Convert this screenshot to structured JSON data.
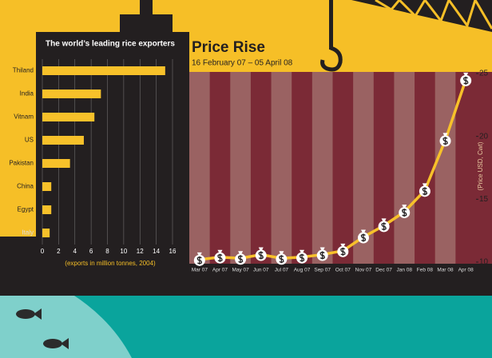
{
  "chart_data": [
    {
      "type": "bar",
      "orientation": "horizontal",
      "title": "The world’s leading rice exporters",
      "x_label": "(exports in million tonnes, 2004)",
      "categories": [
        "Thiland",
        "India",
        "Vitnam",
        "US",
        "Pakistan",
        "China",
        "Egypt",
        "Italy"
      ],
      "values": [
        15.1,
        7.2,
        6.4,
        5.1,
        3.4,
        1.1,
        1.1,
        0.9
      ],
      "color": "#f7c12a",
      "xlim": [
        0,
        16
      ],
      "xticks": [
        0,
        2,
        4,
        6,
        8,
        10,
        12,
        14,
        16
      ],
      "grid": true
    },
    {
      "type": "line",
      "title": "Price Rise",
      "subtitle": "16 February 07 – 05 April 08",
      "y_label": "(Price USD, Cwt)",
      "categories": [
        "Mar 07",
        "Apr 07",
        "May 07",
        "Jun 07",
        "Jul 07",
        "Aug 07",
        "Sep 07",
        "Oct 07",
        "Nov 07",
        "Dec 07",
        "Jan 08",
        "Feb 08",
        "Mar 08",
        "Apr 08"
      ],
      "values": [
        10.2,
        10.4,
        10.3,
        10.6,
        10.3,
        10.4,
        10.6,
        10.9,
        12.0,
        12.9,
        14.0,
        15.7,
        19.7,
        24.5
      ],
      "color": "#f7c12a",
      "ylim": [
        10,
        25
      ],
      "yticks": [
        10,
        15,
        20,
        25
      ]
    }
  ]
}
